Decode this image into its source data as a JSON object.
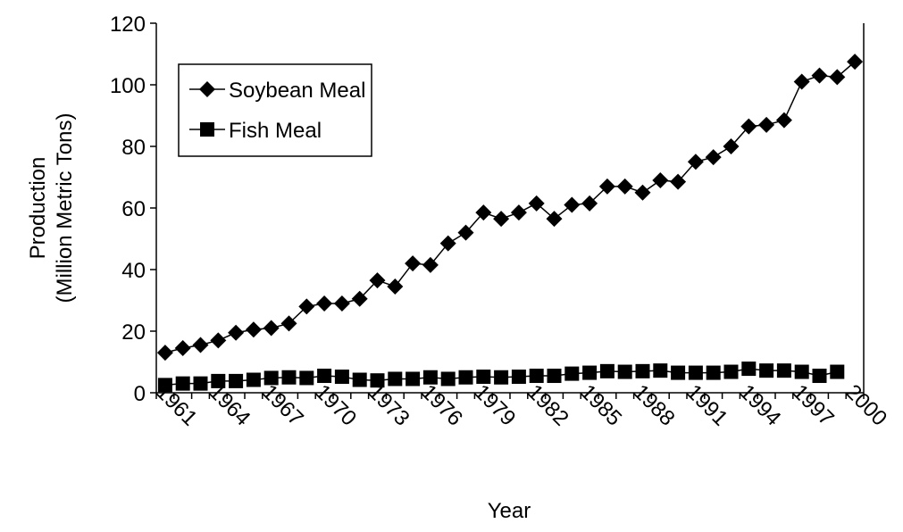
{
  "chart_data": {
    "type": "line",
    "x_label": "Year",
    "y_label": [
      "Production",
      "(Million Metric Tons)"
    ],
    "categories": [
      "1961",
      null,
      null,
      "1964",
      null,
      null,
      "1967",
      null,
      null,
      "1970",
      null,
      null,
      "1973",
      null,
      null,
      "1976",
      null,
      null,
      "1979",
      null,
      null,
      "1982",
      null,
      null,
      "1985",
      null,
      null,
      "1988",
      null,
      null,
      "1991",
      null,
      null,
      "1994",
      null,
      null,
      "1997",
      null,
      null,
      "2000"
    ],
    "series": [
      {
        "name": "Soybean Meal",
        "color": "#000000",
        "marker": "diamond",
        "values": [
          13,
          14.5,
          15.5,
          17,
          19.5,
          20.5,
          21,
          22.5,
          28,
          29,
          29,
          30.5,
          36.5,
          34.5,
          42,
          41.5,
          48.5,
          52,
          58.5,
          56.5,
          58.5,
          61.5,
          56.5,
          61,
          61.5,
          67,
          67,
          65,
          69,
          68.5,
          75,
          76.5,
          80,
          86.5,
          87,
          88.5,
          101,
          103,
          102.5,
          107.5
        ]
      },
      {
        "name": "Fish Meal",
        "color": "#000000",
        "marker": "square",
        "values": [
          2.5,
          3,
          3,
          3.8,
          3.8,
          4.2,
          4.8,
          5,
          4.8,
          5.5,
          5.2,
          4.2,
          4,
          4.5,
          4.5,
          5,
          4.5,
          5,
          5.2,
          5,
          5.2,
          5.5,
          5.5,
          6.2,
          6.5,
          7,
          6.8,
          7,
          7.2,
          6.5,
          6.5,
          6.5,
          6.8,
          7.8,
          7.2,
          7.2,
          6.8,
          5.5,
          6.8,
          null
        ]
      }
    ],
    "ylim": [
      0,
      120
    ],
    "yticks": [
      0,
      20,
      40,
      60,
      80,
      100,
      120
    ]
  }
}
